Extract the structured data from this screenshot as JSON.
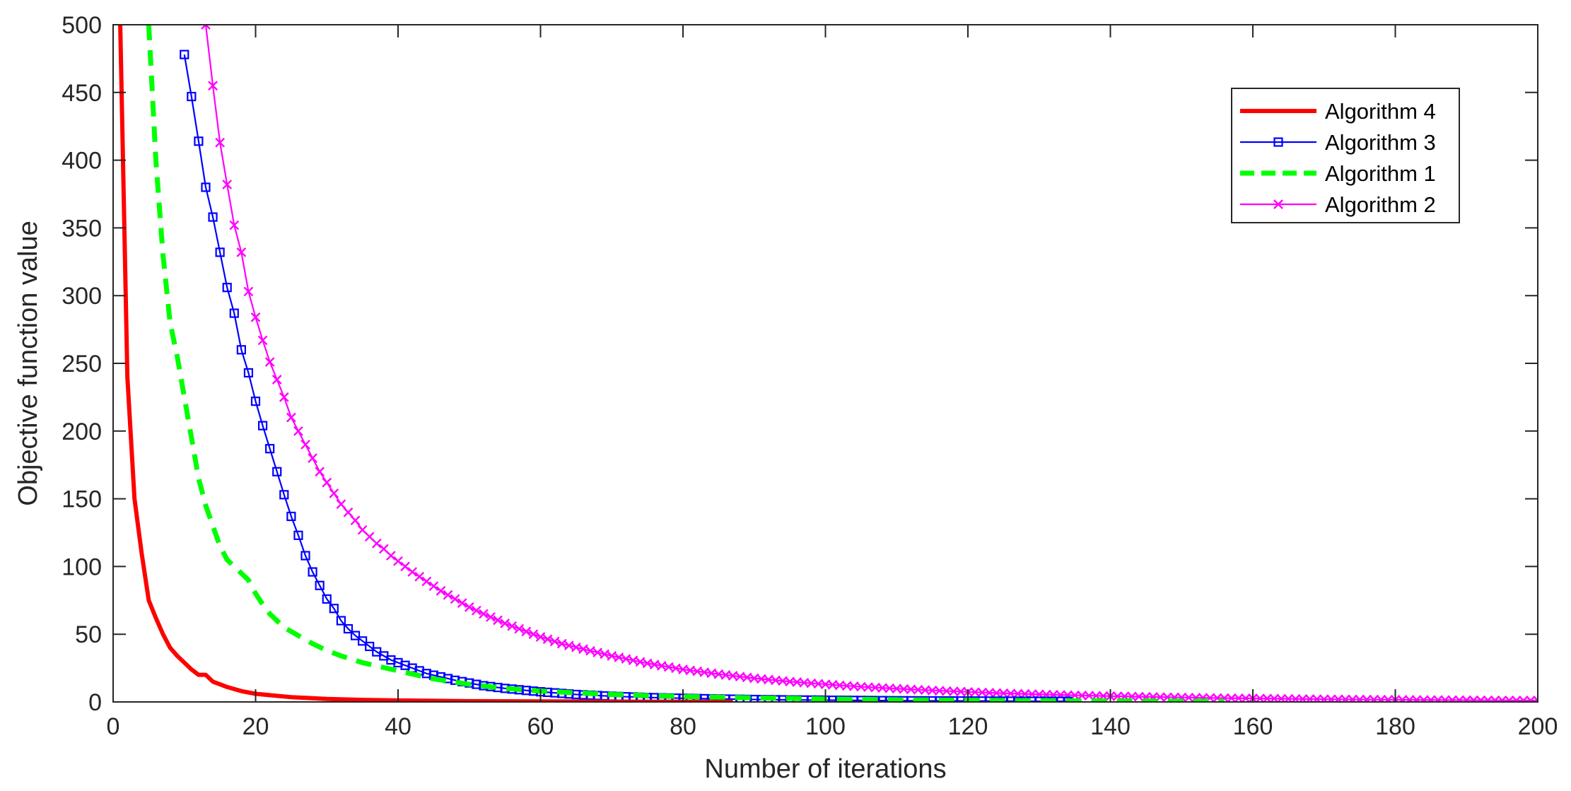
{
  "chart_data": {
    "type": "line",
    "title": "",
    "xlabel": "Number of iterations",
    "ylabel": "Objective function value",
    "xlim": [
      0,
      200
    ],
    "ylim": [
      0,
      500
    ],
    "x_ticks": [
      "0",
      "20",
      "40",
      "60",
      "80",
      "100",
      "120",
      "140",
      "160",
      "180",
      "200"
    ],
    "y_ticks": [
      "0",
      "50",
      "100",
      "150",
      "200",
      "250",
      "300",
      "350",
      "400",
      "450",
      "500"
    ],
    "grid": false,
    "legend_position": "top-right",
    "series": [
      {
        "name": "Algorithm 4",
        "color": "#ff0000",
        "line_style": "solid-thick",
        "marker": "none",
        "points": [
          [
            1,
            500
          ],
          [
            2,
            240
          ],
          [
            3,
            150
          ],
          [
            4,
            110
          ],
          [
            5,
            75
          ],
          [
            6,
            62
          ],
          [
            7,
            50
          ],
          [
            8,
            40
          ],
          [
            9,
            34
          ],
          [
            10,
            29
          ],
          [
            11,
            24
          ],
          [
            12,
            20
          ],
          [
            13,
            20
          ],
          [
            14,
            15
          ],
          [
            15,
            13
          ],
          [
            16,
            11
          ],
          [
            18,
            8
          ],
          [
            20,
            6
          ],
          [
            25,
            3.5
          ],
          [
            30,
            2.2
          ],
          [
            35,
            1.5
          ],
          [
            40,
            1.1
          ],
          [
            50,
            0.6
          ],
          [
            60,
            0.4
          ],
          [
            70,
            0.25
          ],
          [
            80,
            0.15
          ],
          [
            87,
            0.1
          ]
        ]
      },
      {
        "name": "Algorithm 3",
        "color": "#0000ff",
        "line_style": "solid",
        "marker": "square",
        "points": [
          [
            10,
            478
          ],
          [
            11,
            447
          ],
          [
            12,
            414
          ],
          [
            13,
            380
          ],
          [
            14,
            358
          ],
          [
            15,
            332
          ],
          [
            16,
            306
          ],
          [
            17,
            287
          ],
          [
            18,
            260
          ],
          [
            19,
            243
          ],
          [
            20,
            222
          ],
          [
            21,
            204
          ],
          [
            22,
            187
          ],
          [
            23,
            170
          ],
          [
            24,
            153
          ],
          [
            25,
            137
          ],
          [
            26,
            123
          ],
          [
            27,
            108
          ],
          [
            28,
            96
          ],
          [
            29,
            86
          ],
          [
            30,
            76
          ],
          [
            31,
            69
          ],
          [
            32,
            60
          ],
          [
            33,
            54
          ],
          [
            34,
            49
          ],
          [
            35,
            45
          ],
          [
            36,
            41
          ],
          [
            37,
            37
          ],
          [
            38,
            34
          ],
          [
            39,
            31
          ],
          [
            40,
            29
          ],
          [
            42,
            25
          ],
          [
            44,
            21
          ],
          [
            46,
            18.5
          ],
          [
            48,
            16
          ],
          [
            50,
            14
          ],
          [
            52,
            12
          ],
          [
            55,
            10
          ],
          [
            58,
            8.5
          ],
          [
            60,
            7.5
          ],
          [
            65,
            5.5
          ],
          [
            70,
            4.2
          ],
          [
            75,
            3.3
          ],
          [
            80,
            2.7
          ],
          [
            85,
            2.2
          ],
          [
            90,
            1.8
          ],
          [
            95,
            1.5
          ],
          [
            100,
            1.3
          ],
          [
            105,
            1.1
          ],
          [
            110,
            0.9
          ],
          [
            115,
            0.8
          ],
          [
            120,
            0.7
          ],
          [
            125,
            0.6
          ],
          [
            130,
            0.5
          ],
          [
            134,
            0.45
          ]
        ]
      },
      {
        "name": "Algorithm 1",
        "color": "#00ff00",
        "line_style": "dashed-thick",
        "marker": "none",
        "points": [
          [
            5,
            500
          ],
          [
            6,
            400
          ],
          [
            7,
            330
          ],
          [
            8,
            280
          ],
          [
            9,
            255
          ],
          [
            10,
            225
          ],
          [
            11,
            195
          ],
          [
            12,
            165
          ],
          [
            13,
            145
          ],
          [
            14,
            130
          ],
          [
            15,
            115
          ],
          [
            16,
            105
          ],
          [
            17,
            100
          ],
          [
            18,
            95
          ],
          [
            19,
            90
          ],
          [
            20,
            80
          ],
          [
            21,
            72
          ],
          [
            22,
            65
          ],
          [
            23,
            60
          ],
          [
            24,
            55
          ],
          [
            25,
            52
          ],
          [
            26,
            49
          ],
          [
            27,
            46
          ],
          [
            28,
            43
          ],
          [
            30,
            38
          ],
          [
            32,
            34
          ],
          [
            35,
            29
          ],
          [
            40,
            23
          ],
          [
            45,
            17
          ],
          [
            50,
            13
          ],
          [
            55,
            10
          ],
          [
            60,
            8
          ],
          [
            70,
            5.5
          ],
          [
            80,
            4
          ],
          [
            90,
            3
          ],
          [
            100,
            2.2
          ],
          [
            110,
            1.6
          ],
          [
            120,
            1.2
          ],
          [
            130,
            0.9
          ],
          [
            140,
            0.7
          ],
          [
            150,
            0.5
          ],
          [
            156,
            0.4
          ]
        ]
      },
      {
        "name": "Algorithm 2",
        "color": "#ff00ff",
        "line_style": "solid",
        "marker": "x",
        "points": [
          [
            13,
            500
          ],
          [
            14,
            455
          ],
          [
            15,
            413
          ],
          [
            16,
            382
          ],
          [
            17,
            352
          ],
          [
            18,
            332
          ],
          [
            19,
            303
          ],
          [
            20,
            284
          ],
          [
            21,
            267
          ],
          [
            22,
            251
          ],
          [
            23,
            238
          ],
          [
            24,
            225
          ],
          [
            25,
            210
          ],
          [
            26,
            200
          ],
          [
            27,
            190
          ],
          [
            28,
            180
          ],
          [
            29,
            170
          ],
          [
            30,
            162
          ],
          [
            31,
            154
          ],
          [
            32,
            146
          ],
          [
            33,
            140
          ],
          [
            34,
            134
          ],
          [
            35,
            127
          ],
          [
            36,
            122
          ],
          [
            37,
            117
          ],
          [
            38,
            113
          ],
          [
            39,
            108
          ],
          [
            40,
            104
          ],
          [
            42,
            96
          ],
          [
            44,
            89
          ],
          [
            46,
            82
          ],
          [
            48,
            76
          ],
          [
            50,
            70
          ],
          [
            52,
            65
          ],
          [
            55,
            58
          ],
          [
            58,
            52
          ],
          [
            60,
            48
          ],
          [
            63,
            43
          ],
          [
            66,
            39
          ],
          [
            70,
            34
          ],
          [
            75,
            28.5
          ],
          [
            80,
            24
          ],
          [
            85,
            20.5
          ],
          [
            90,
            17.5
          ],
          [
            95,
            15
          ],
          [
            100,
            13
          ],
          [
            105,
            11.2
          ],
          [
            110,
            9.8
          ],
          [
            115,
            8.5
          ],
          [
            120,
            7.4
          ],
          [
            125,
            6.4
          ],
          [
            130,
            5.6
          ],
          [
            135,
            4.9
          ],
          [
            140,
            4.3
          ],
          [
            145,
            3.8
          ],
          [
            150,
            3.3
          ],
          [
            155,
            2.9
          ],
          [
            160,
            2.6
          ],
          [
            165,
            2.3
          ],
          [
            170,
            2.0
          ],
          [
            175,
            1.8
          ],
          [
            180,
            1.6
          ],
          [
            185,
            1.45
          ],
          [
            190,
            1.3
          ],
          [
            195,
            1.15
          ],
          [
            200,
            1.05
          ]
        ]
      }
    ]
  }
}
